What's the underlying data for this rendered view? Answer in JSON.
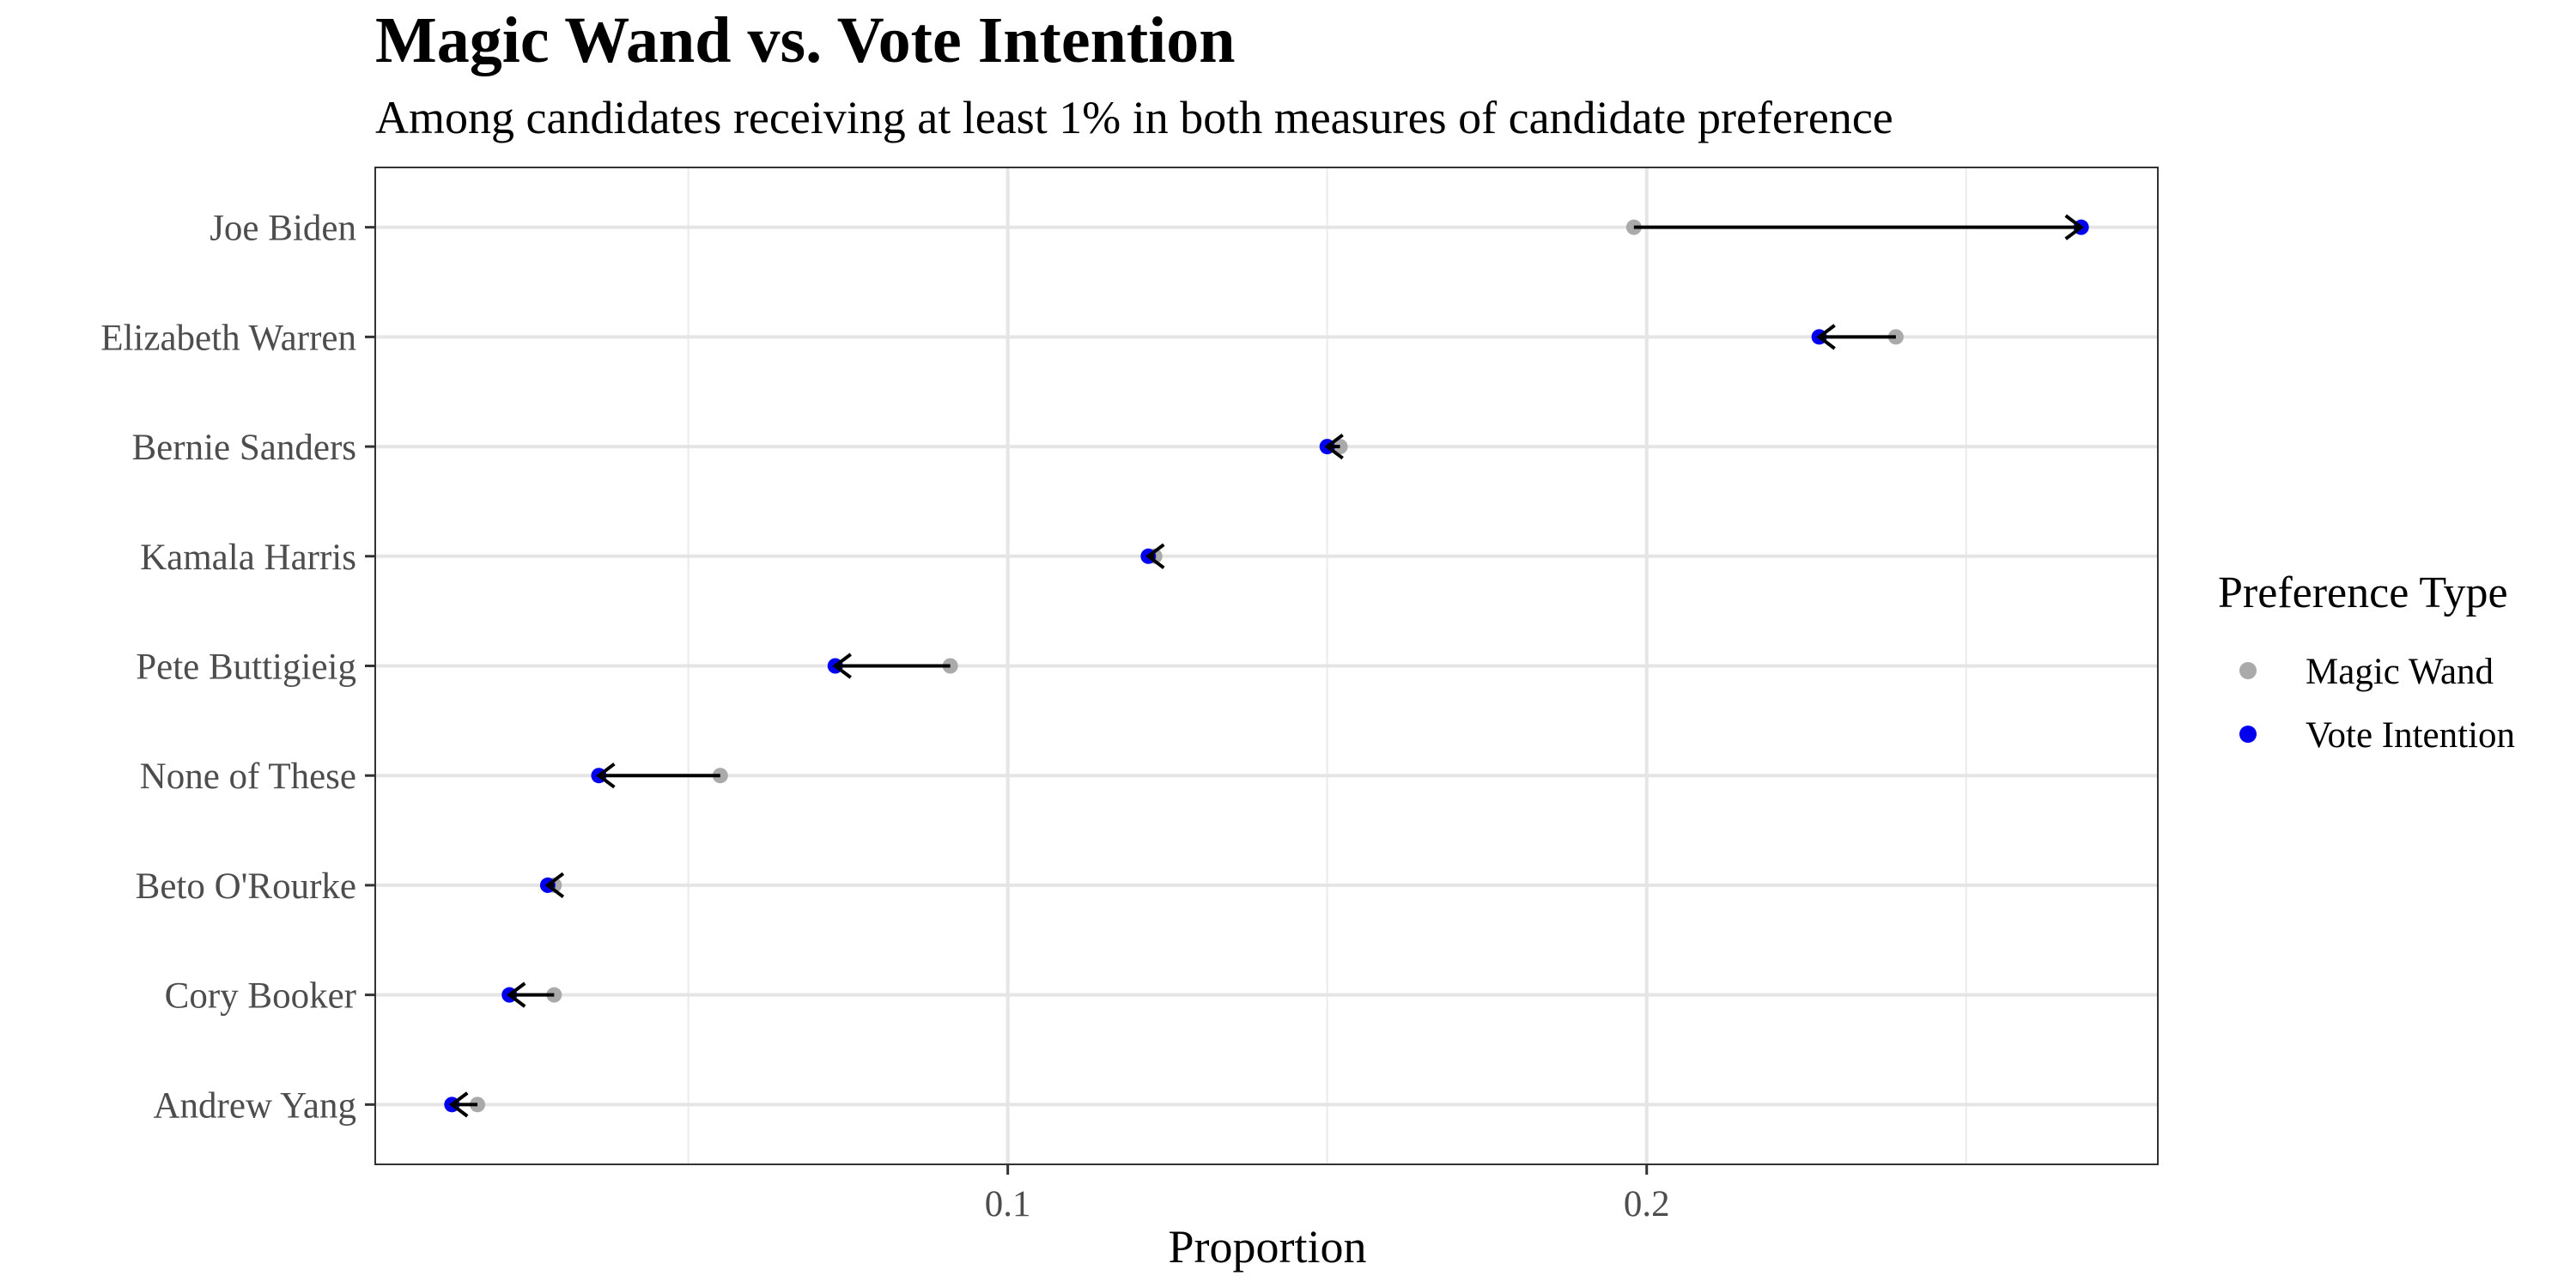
{
  "chart_data": {
    "type": "dumbbell",
    "title": "Magic Wand vs. Vote Intention",
    "subtitle": "Among candidates receiving at least 1% in both measures of candidate preference",
    "xlabel": "Proportion",
    "ylabel": "",
    "xlim": [
      0.001,
      0.28
    ],
    "x_ticks": [
      0.1,
      0.2
    ],
    "x_tick_labels": [
      "0.1",
      "0.2"
    ],
    "grid": true,
    "legend": {
      "title": "Preference Type",
      "position": "right",
      "entries": [
        "Magic Wand",
        "Vote Intention"
      ]
    },
    "categories": [
      "Joe Biden",
      "Elizabeth Warren",
      "Bernie Sanders",
      "Kamala Harris",
      "Pete Buttigieig",
      "None of These",
      "Beto O'Rourke",
      "Cory Booker",
      "Andrew Yang"
    ],
    "series": [
      {
        "name": "Magic Wand",
        "color": "#aaaaaa",
        "values": [
          0.198,
          0.239,
          0.152,
          0.123,
          0.091,
          0.055,
          0.029,
          0.029,
          0.017
        ]
      },
      {
        "name": "Vote Intention",
        "color": "#0000ee",
        "values": [
          0.268,
          0.227,
          0.15,
          0.122,
          0.073,
          0.036,
          0.028,
          0.022,
          0.013
        ]
      }
    ],
    "arrow_color": "#000000"
  }
}
